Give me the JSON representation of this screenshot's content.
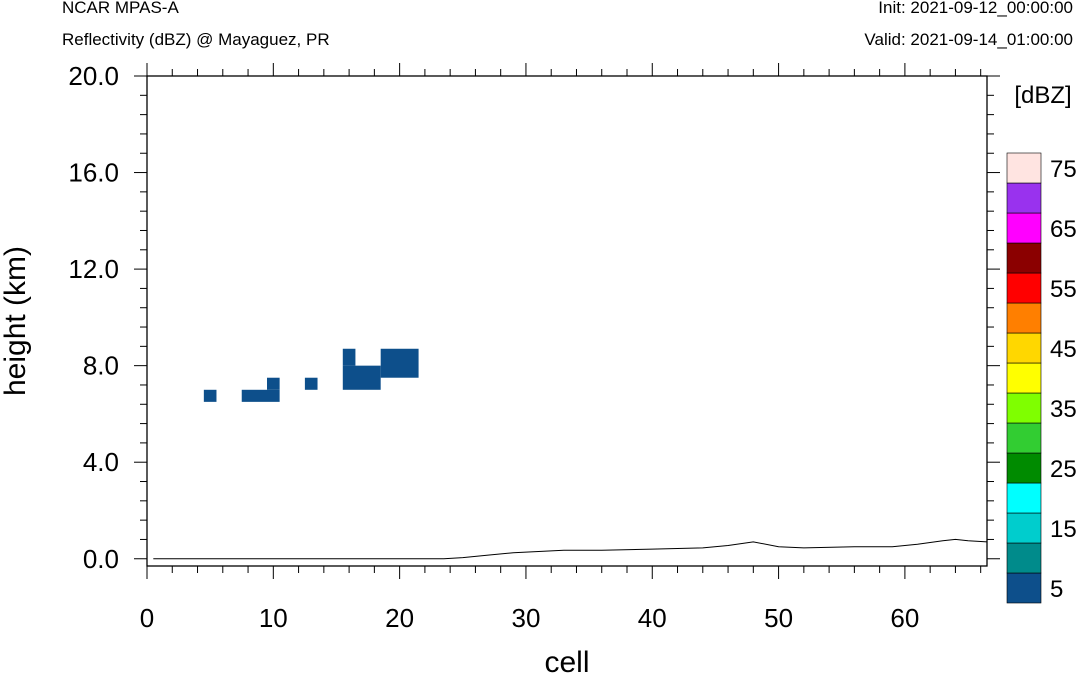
{
  "header": {
    "model": "NCAR MPAS-A",
    "field": "Reflectivity (dBZ) @ Mayaguez, PR",
    "init": "Init: 2021-09-12_00:00:00",
    "valid": "Valid: 2021-09-14_01:00:00"
  },
  "chart_data": {
    "type": "heatmap",
    "xlabel": "cell",
    "ylabel": "height (km)",
    "xlim": [
      0,
      66.5
    ],
    "ylim": [
      -0.3,
      20.0
    ],
    "xticks": [
      0,
      10,
      20,
      30,
      40,
      50,
      60
    ],
    "xtick_labels": [
      "0",
      "10",
      "20",
      "30",
      "40",
      "50",
      "60"
    ],
    "yticks": [
      0,
      4,
      8,
      12,
      16,
      20
    ],
    "ytick_labels": [
      "0.0",
      "4.0",
      "8.0",
      "12.0",
      "16.0",
      "20.0"
    ],
    "colorbar": {
      "title": "[dBZ]",
      "labels": [
        "5",
        "15",
        "25",
        "35",
        "45",
        "55",
        "65",
        "75"
      ],
      "bins": [
        {
          "value": 5,
          "color": "#0d4f8b"
        },
        {
          "value": 10,
          "color": "#008b8b"
        },
        {
          "value": 15,
          "color": "#00cdcd"
        },
        {
          "value": 20,
          "color": "#00ffff"
        },
        {
          "value": 25,
          "color": "#008b00"
        },
        {
          "value": 30,
          "color": "#32cd32"
        },
        {
          "value": 35,
          "color": "#7fff00"
        },
        {
          "value": 40,
          "color": "#ffff00"
        },
        {
          "value": 45,
          "color": "#ffd700"
        },
        {
          "value": 50,
          "color": "#ff7f00"
        },
        {
          "value": 55,
          "color": "#ff0000"
        },
        {
          "value": 60,
          "color": "#8b0000"
        },
        {
          "value": 65,
          "color": "#ff00ff"
        },
        {
          "value": 70,
          "color": "#9932ee"
        },
        {
          "value": 75,
          "color": "#ffe4e1"
        }
      ]
    },
    "cells": [
      {
        "x0": 4.5,
        "x1": 5.5,
        "y0": 6.5,
        "y1": 7.0,
        "dbz": 5
      },
      {
        "x0": 7.5,
        "x1": 10.5,
        "y0": 6.5,
        "y1": 7.0,
        "dbz": 5
      },
      {
        "x0": 9.5,
        "x1": 10.5,
        "y0": 7.0,
        "y1": 7.5,
        "dbz": 5
      },
      {
        "x0": 12.5,
        "x1": 13.5,
        "y0": 7.0,
        "y1": 7.5,
        "dbz": 5
      },
      {
        "x0": 15.5,
        "x1": 18.5,
        "y0": 7.0,
        "y1": 8.0,
        "dbz": 5
      },
      {
        "x0": 15.5,
        "x1": 16.5,
        "y0": 8.0,
        "y1": 8.7,
        "dbz": 5
      },
      {
        "x0": 18.5,
        "x1": 21.5,
        "y0": 7.5,
        "y1": 8.7,
        "dbz": 5
      }
    ],
    "terrain": {
      "x": [
        0.5,
        23.5,
        25,
        27,
        29,
        31,
        33,
        36,
        40,
        44,
        46,
        48,
        50,
        52,
        56,
        59,
        61,
        63,
        64,
        65,
        66.5
      ],
      "y": [
        0.0,
        0.0,
        0.05,
        0.15,
        0.25,
        0.3,
        0.35,
        0.35,
        0.4,
        0.45,
        0.55,
        0.7,
        0.5,
        0.45,
        0.5,
        0.5,
        0.6,
        0.75,
        0.8,
        0.75,
        0.7
      ]
    }
  }
}
